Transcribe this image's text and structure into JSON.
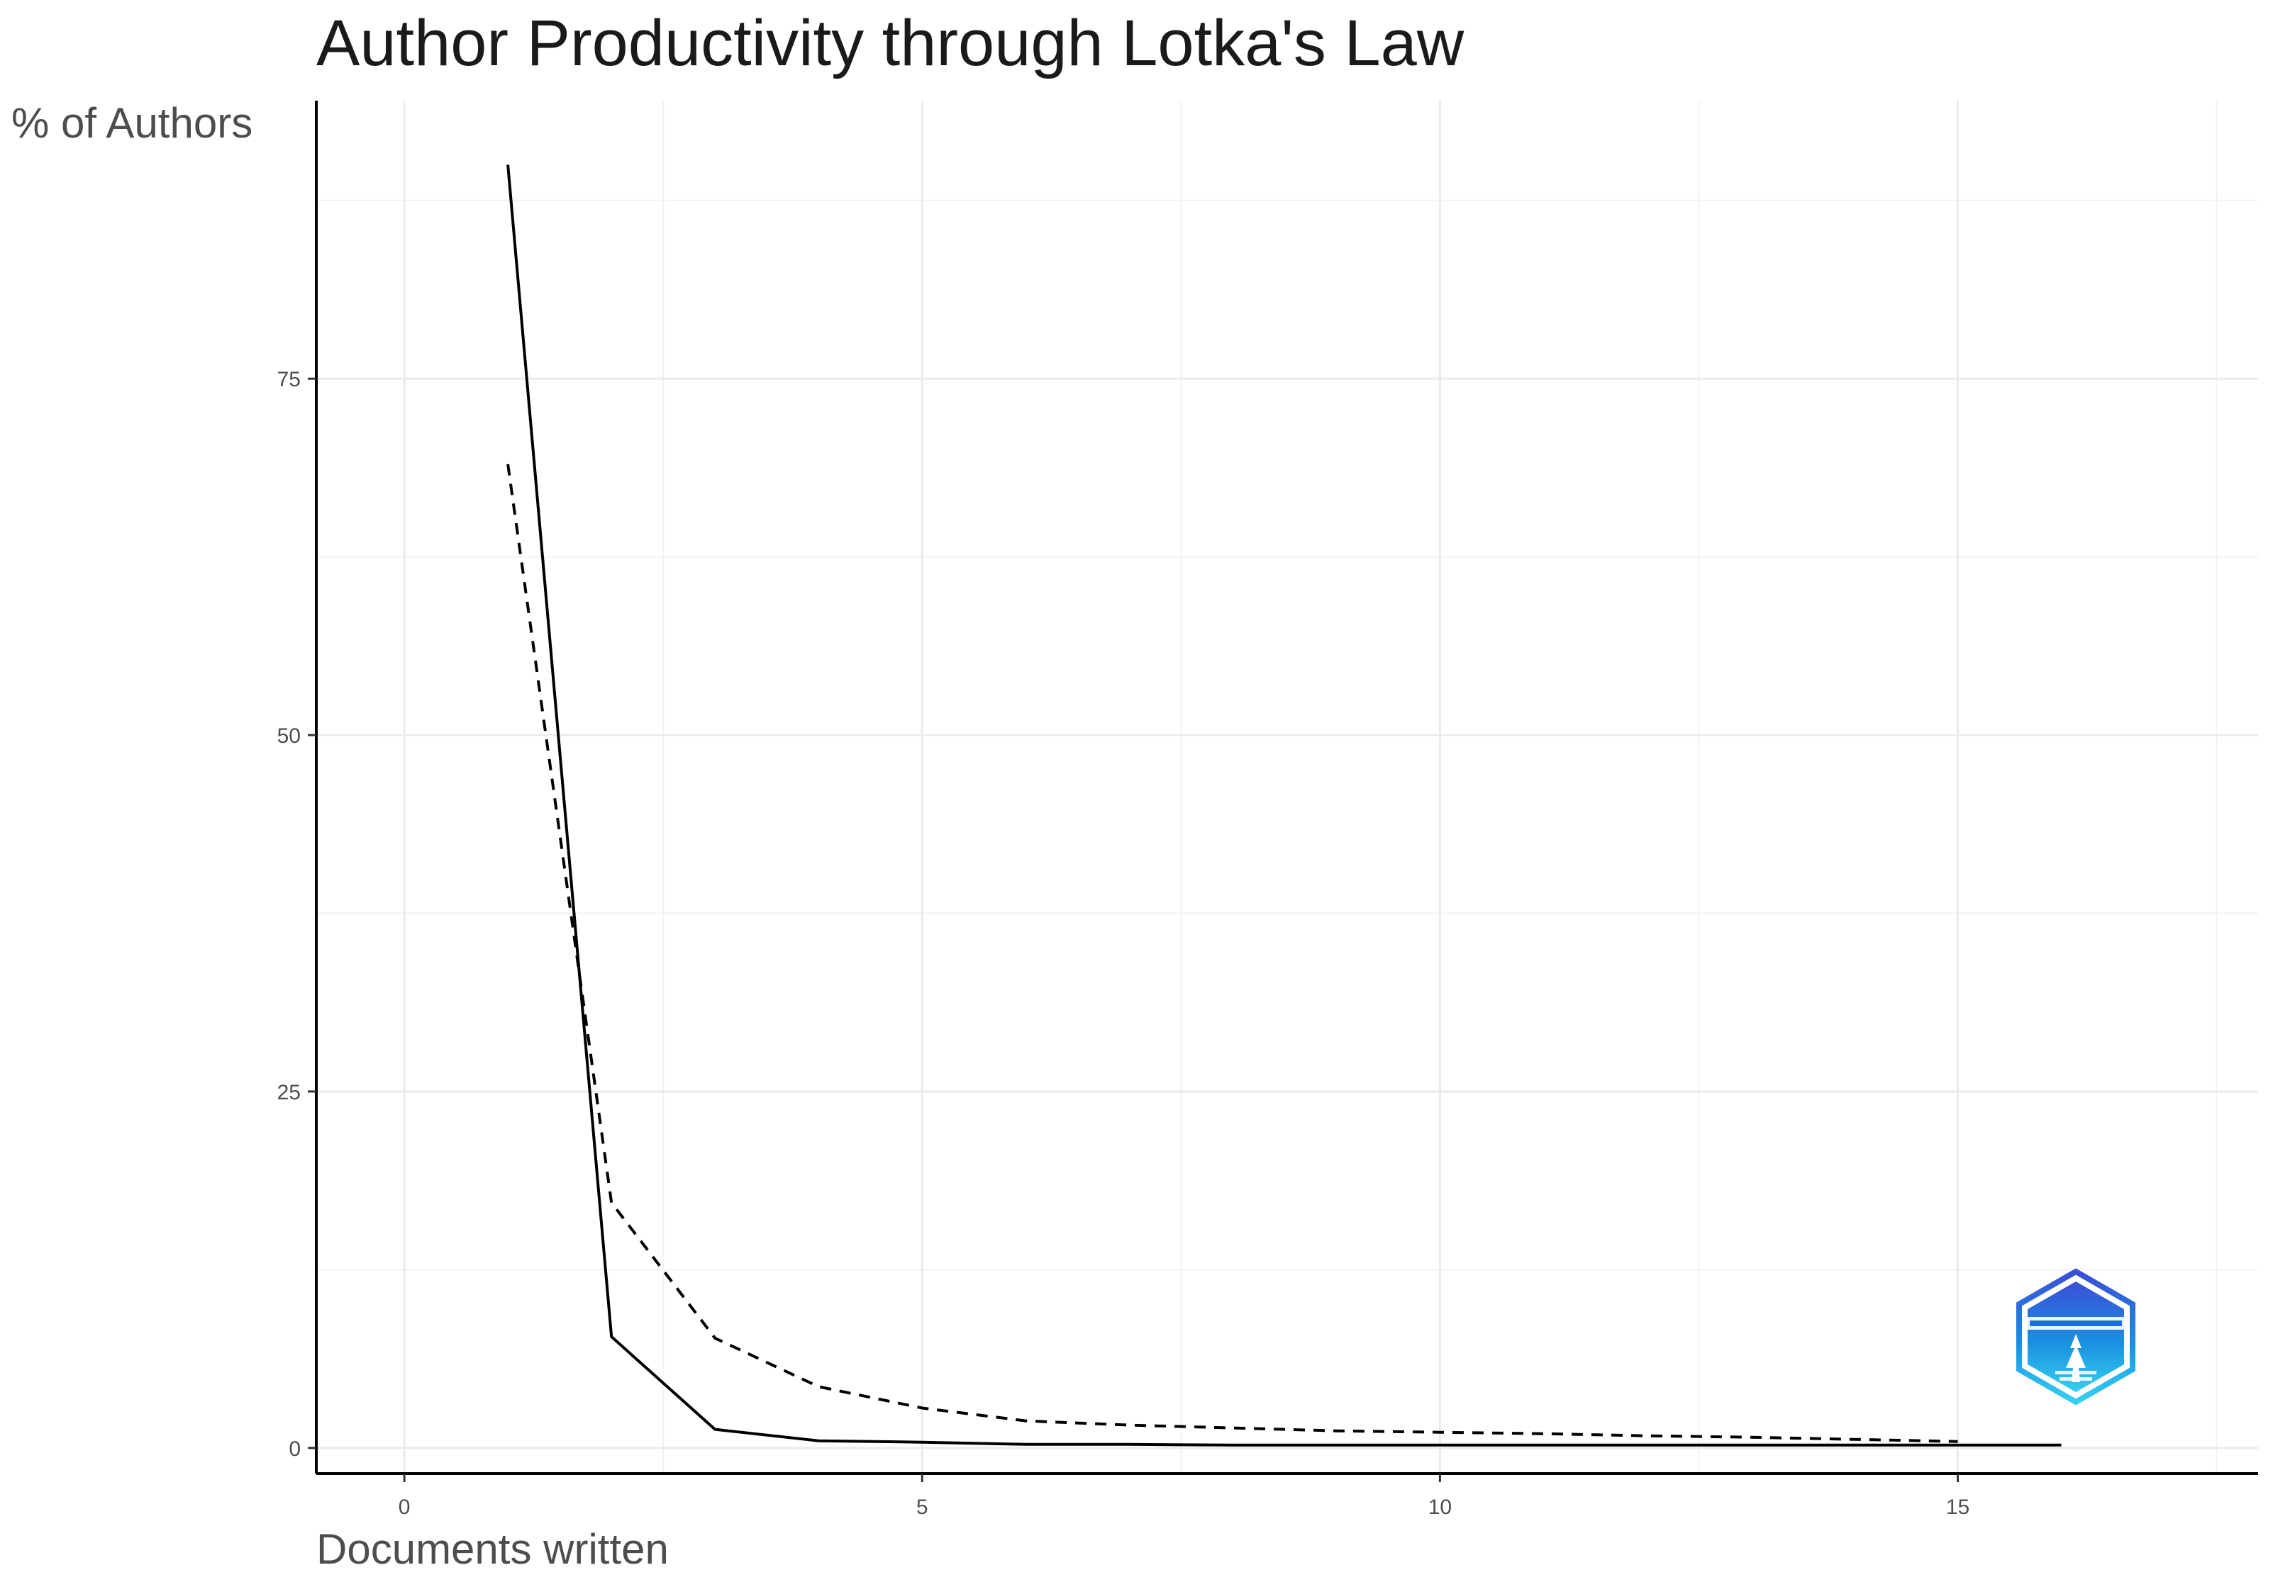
{
  "chart_data": {
    "type": "line",
    "title": "Author Productivity through Lotka's Law",
    "xlabel": "Documents written",
    "ylabel": "% of Authors",
    "xlim": [
      -0.85,
      17.9
    ],
    "ylim": [
      -1.8,
      94.5
    ],
    "x_ticks": [
      0,
      5,
      10,
      15
    ],
    "x_tick_labels": [
      "0",
      "5",
      "10",
      "15"
    ],
    "y_ticks": [
      0,
      25,
      50,
      75
    ],
    "y_tick_labels": [
      "0",
      "25",
      "50",
      "75"
    ],
    "grid": true,
    "legend": "none",
    "series": [
      {
        "line_style": "solid",
        "color": "#000000",
        "points": [
          [
            1,
            90.0
          ],
          [
            2,
            7.8
          ],
          [
            3,
            1.3
          ],
          [
            4,
            0.5
          ],
          [
            5,
            0.4
          ],
          [
            6,
            0.25
          ],
          [
            7,
            0.25
          ],
          [
            8,
            0.2
          ],
          [
            9,
            0.2
          ],
          [
            10,
            0.2
          ],
          [
            11,
            0.2
          ],
          [
            12,
            0.2
          ],
          [
            13,
            0.2
          ],
          [
            14,
            0.2
          ],
          [
            15,
            0.2
          ],
          [
            16,
            0.2
          ]
        ]
      },
      {
        "line_style": "dashed",
        "color": "#000000",
        "points": [
          [
            1,
            69.0
          ],
          [
            2,
            17.2
          ],
          [
            3,
            7.7
          ],
          [
            4,
            4.3
          ],
          [
            5,
            2.8
          ],
          [
            6,
            1.9
          ],
          [
            7,
            1.6
          ],
          [
            8,
            1.4
          ],
          [
            9,
            1.2
          ],
          [
            10,
            1.1
          ],
          [
            11,
            1.0
          ],
          [
            12,
            0.85
          ],
          [
            13,
            0.75
          ],
          [
            14,
            0.6
          ],
          [
            15,
            0.45
          ]
        ]
      }
    ]
  },
  "logo": {
    "icon": "bibliometrix-logo-icon",
    "colors": [
      "#3a4fd8",
      "#1a8fe0",
      "#35d0f0"
    ]
  }
}
